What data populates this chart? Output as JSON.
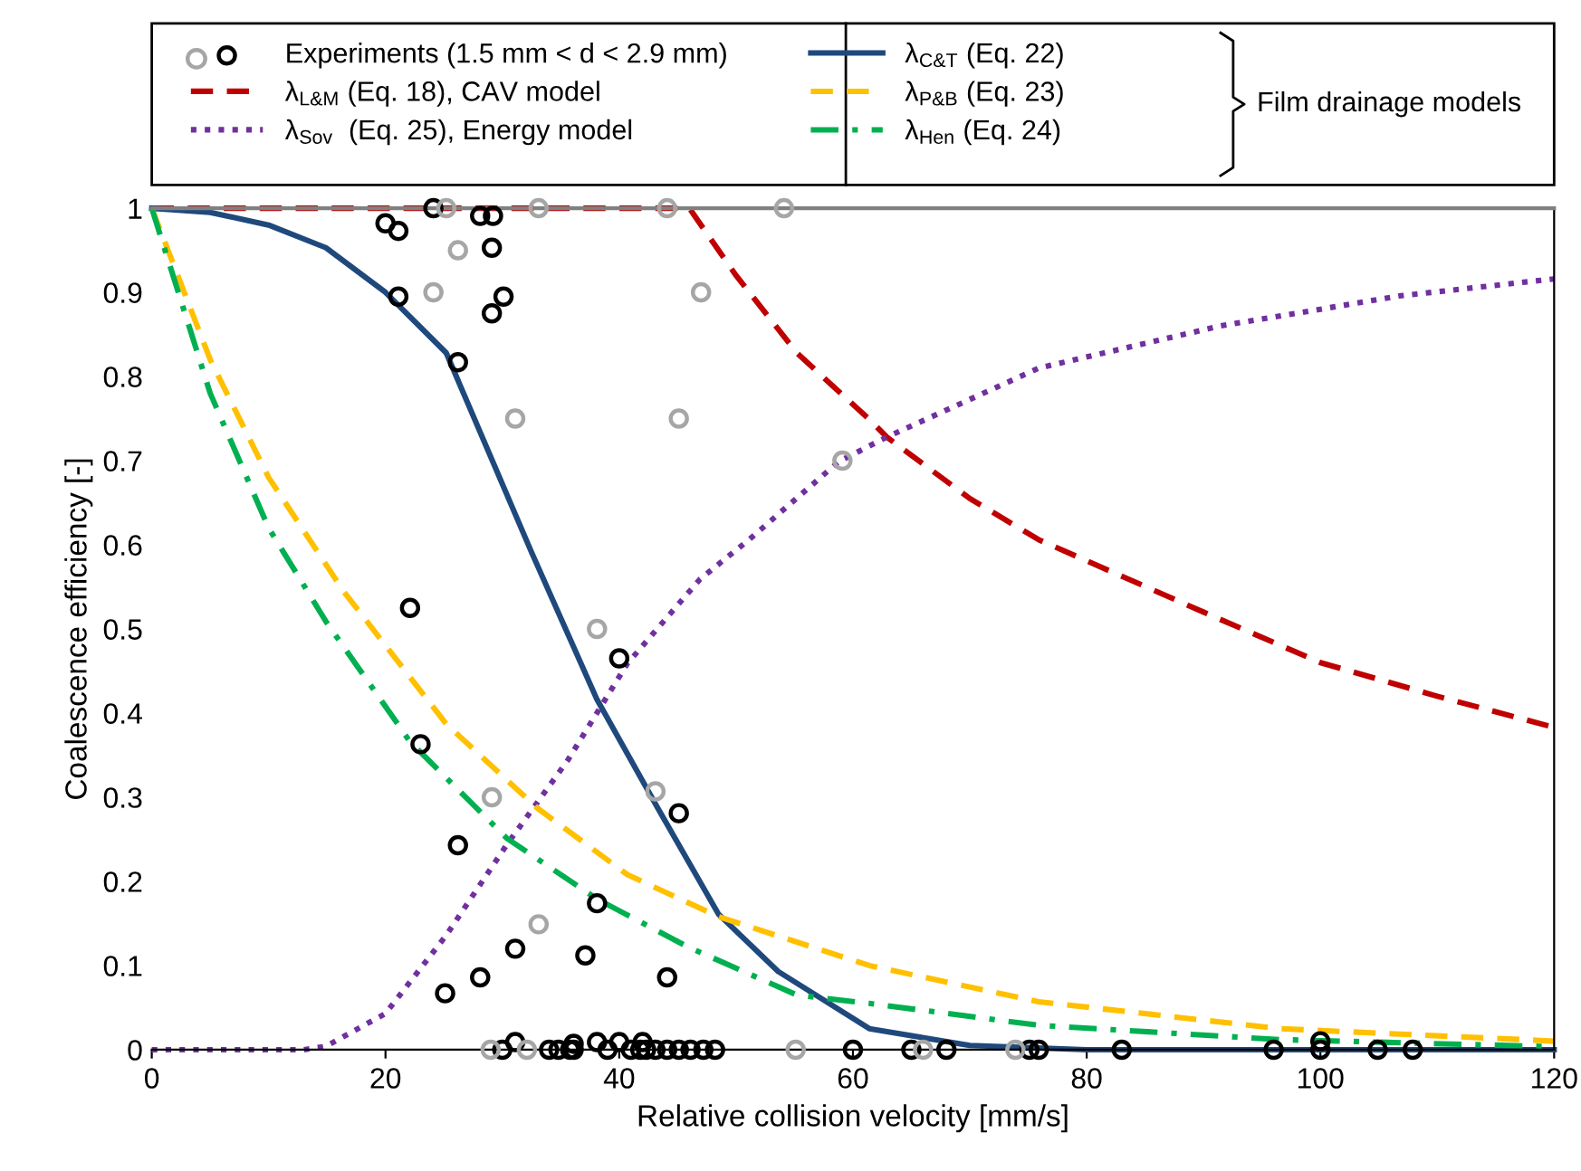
{
  "chart_data": {
    "type": "line",
    "xlabel": "Relative collision velocity [mm/s]",
    "ylabel": "Coalescence efficiency [-]",
    "xlim": [
      0,
      120
    ],
    "xticks": [
      0,
      20,
      40,
      60,
      80,
      100,
      120
    ],
    "ylim": [
      0,
      1
    ],
    "yticks": [
      0,
      0.1,
      0.2,
      0.3,
      0.4,
      0.5,
      0.6,
      0.7,
      0.8,
      0.9,
      1
    ],
    "grid": false,
    "legend": "top",
    "annotations": [
      "Film drainage models"
    ],
    "series": [
      {
        "name": "Experiments (1.5 mm < d < 2.9 mm)",
        "type": "scatter",
        "marker": "circle",
        "color": "#000000",
        "x": [
          24.1,
          20.0,
          21.1,
          28.1,
          29.2,
          29.1,
          21.1,
          30.1,
          29.1,
          26.2,
          22.1,
          40.0,
          23.0,
          45.1,
          26.2,
          38.1,
          31.1,
          37.1,
          28.1,
          44.1,
          25.1,
          31.1,
          36.1,
          38.1,
          40.0,
          42.0,
          30.0,
          34.0,
          34.8,
          35.8,
          36.1,
          39.0,
          41.0,
          41.8,
          42.3,
          43.1,
          44.1,
          45.1,
          46.1,
          47.2,
          48.2,
          60.0,
          65.0,
          68.0,
          75.1,
          75.9,
          83.0,
          96.0,
          100.0,
          100.0,
          104.9,
          107.9
        ],
        "values": [
          1.0,
          0.982,
          0.973,
          0.991,
          0.991,
          0.953,
          0.895,
          0.895,
          0.875,
          0.817,
          0.525,
          0.465,
          0.363,
          0.281,
          0.243,
          0.174,
          0.12,
          0.112,
          0.086,
          0.086,
          0.067,
          0.009,
          0.007,
          0.009,
          0.009,
          0.009,
          0,
          0,
          0,
          0,
          0,
          0,
          0,
          0,
          0,
          0,
          0,
          0,
          0,
          0,
          0,
          0,
          0,
          0,
          0,
          0,
          0,
          0,
          0,
          0.01,
          0,
          0
        ]
      },
      {
        "type": "scatter",
        "marker": "circle",
        "color": "#a6a6a6",
        "x": [
          25.2,
          33.1,
          44.1,
          54.1,
          26.2,
          24.1,
          47.0,
          31.1,
          45.1,
          59.1,
          38.1,
          43.1,
          29.1,
          33.1,
          29.0,
          32.1,
          55.1,
          66.0,
          73.9
        ],
        "values": [
          1,
          1,
          1,
          1,
          0.95,
          0.9,
          0.9,
          0.75,
          0.75,
          0.7,
          0.5,
          0.307,
          0.3,
          0.149,
          0,
          0,
          0,
          0,
          0
        ]
      },
      {
        "name": "λ$_{L&M}$ (Eq. 18), CAV model",
        "type": "line",
        "line_style": "dashed",
        "color": "#c00000",
        "x": [
          0,
          20,
          40,
          46,
          50,
          55.2,
          61.4,
          62.9,
          70,
          75.9,
          90,
          100,
          110,
          120
        ],
        "values": [
          1,
          1,
          1,
          1,
          0.92,
          0.828,
          0.749,
          0.728,
          0.655,
          0.606,
          0.52,
          0.46,
          0.42,
          0.383
        ]
      },
      {
        "name": "λ$_{Sov}$  (Eq. 25), Energy model",
        "type": "line",
        "line_style": "dotted",
        "color": "#7030a0",
        "x": [
          0,
          10,
          13,
          14.9,
          20,
          25.2,
          30.4,
          35.6,
          40.7,
          46.9,
          51.1,
          58.8,
          62.9,
          75.9,
          91.4,
          106.9,
          120
        ],
        "values": [
          0,
          0,
          0,
          0.004,
          0.043,
          0.136,
          0.244,
          0.344,
          0.459,
          0.559,
          0.606,
          0.699,
          0.728,
          0.81,
          0.86,
          0.896,
          0.916
        ]
      },
      {
        "name": "λ$_{C&T}$ (Eq. 22)",
        "type": "line",
        "line_style": "solid",
        "color": "#1f497d",
        "x": [
          0,
          5,
          10,
          14.9,
          20,
          25.2,
          32.5,
          35.8,
          38.1,
          43.3,
          48.5,
          53.6,
          61.4,
          70,
          80,
          120
        ],
        "values": [
          1,
          0.995,
          0.98,
          0.953,
          0.9,
          0.828,
          0.591,
          0.488,
          0.416,
          0.287,
          0.161,
          0.093,
          0.025,
          0.005,
          0,
          0
        ]
      },
      {
        "name": "λ$_{P&B}$ (Eq. 23)",
        "type": "line",
        "line_style": "dashed",
        "color": "#ffc000",
        "x": [
          0,
          5,
          10,
          16.4,
          25.2,
          33.0,
          40.7,
          48.5,
          61.4,
          75.9,
          96.5,
          118.8,
          120
        ],
        "values": [
          1,
          0.82,
          0.68,
          0.545,
          0.387,
          0.287,
          0.208,
          0.158,
          0.1,
          0.057,
          0.025,
          0.011,
          0.01
        ]
      },
      {
        "name": "λ$_{Hen}$ (Eq. 24)",
        "type": "line",
        "line_style": "dashdot",
        "color": "#00b050",
        "x": [
          0,
          5,
          10,
          14.9,
          22.1,
          30.4,
          38.1,
          45.9,
          55.2,
          61.4,
          75.9,
          96.5,
          118.8,
          120
        ],
        "values": [
          1,
          0.78,
          0.62,
          0.509,
          0.366,
          0.251,
          0.179,
          0.122,
          0.065,
          0.055,
          0.029,
          0.012,
          0.004,
          0.004
        ]
      }
    ]
  }
}
